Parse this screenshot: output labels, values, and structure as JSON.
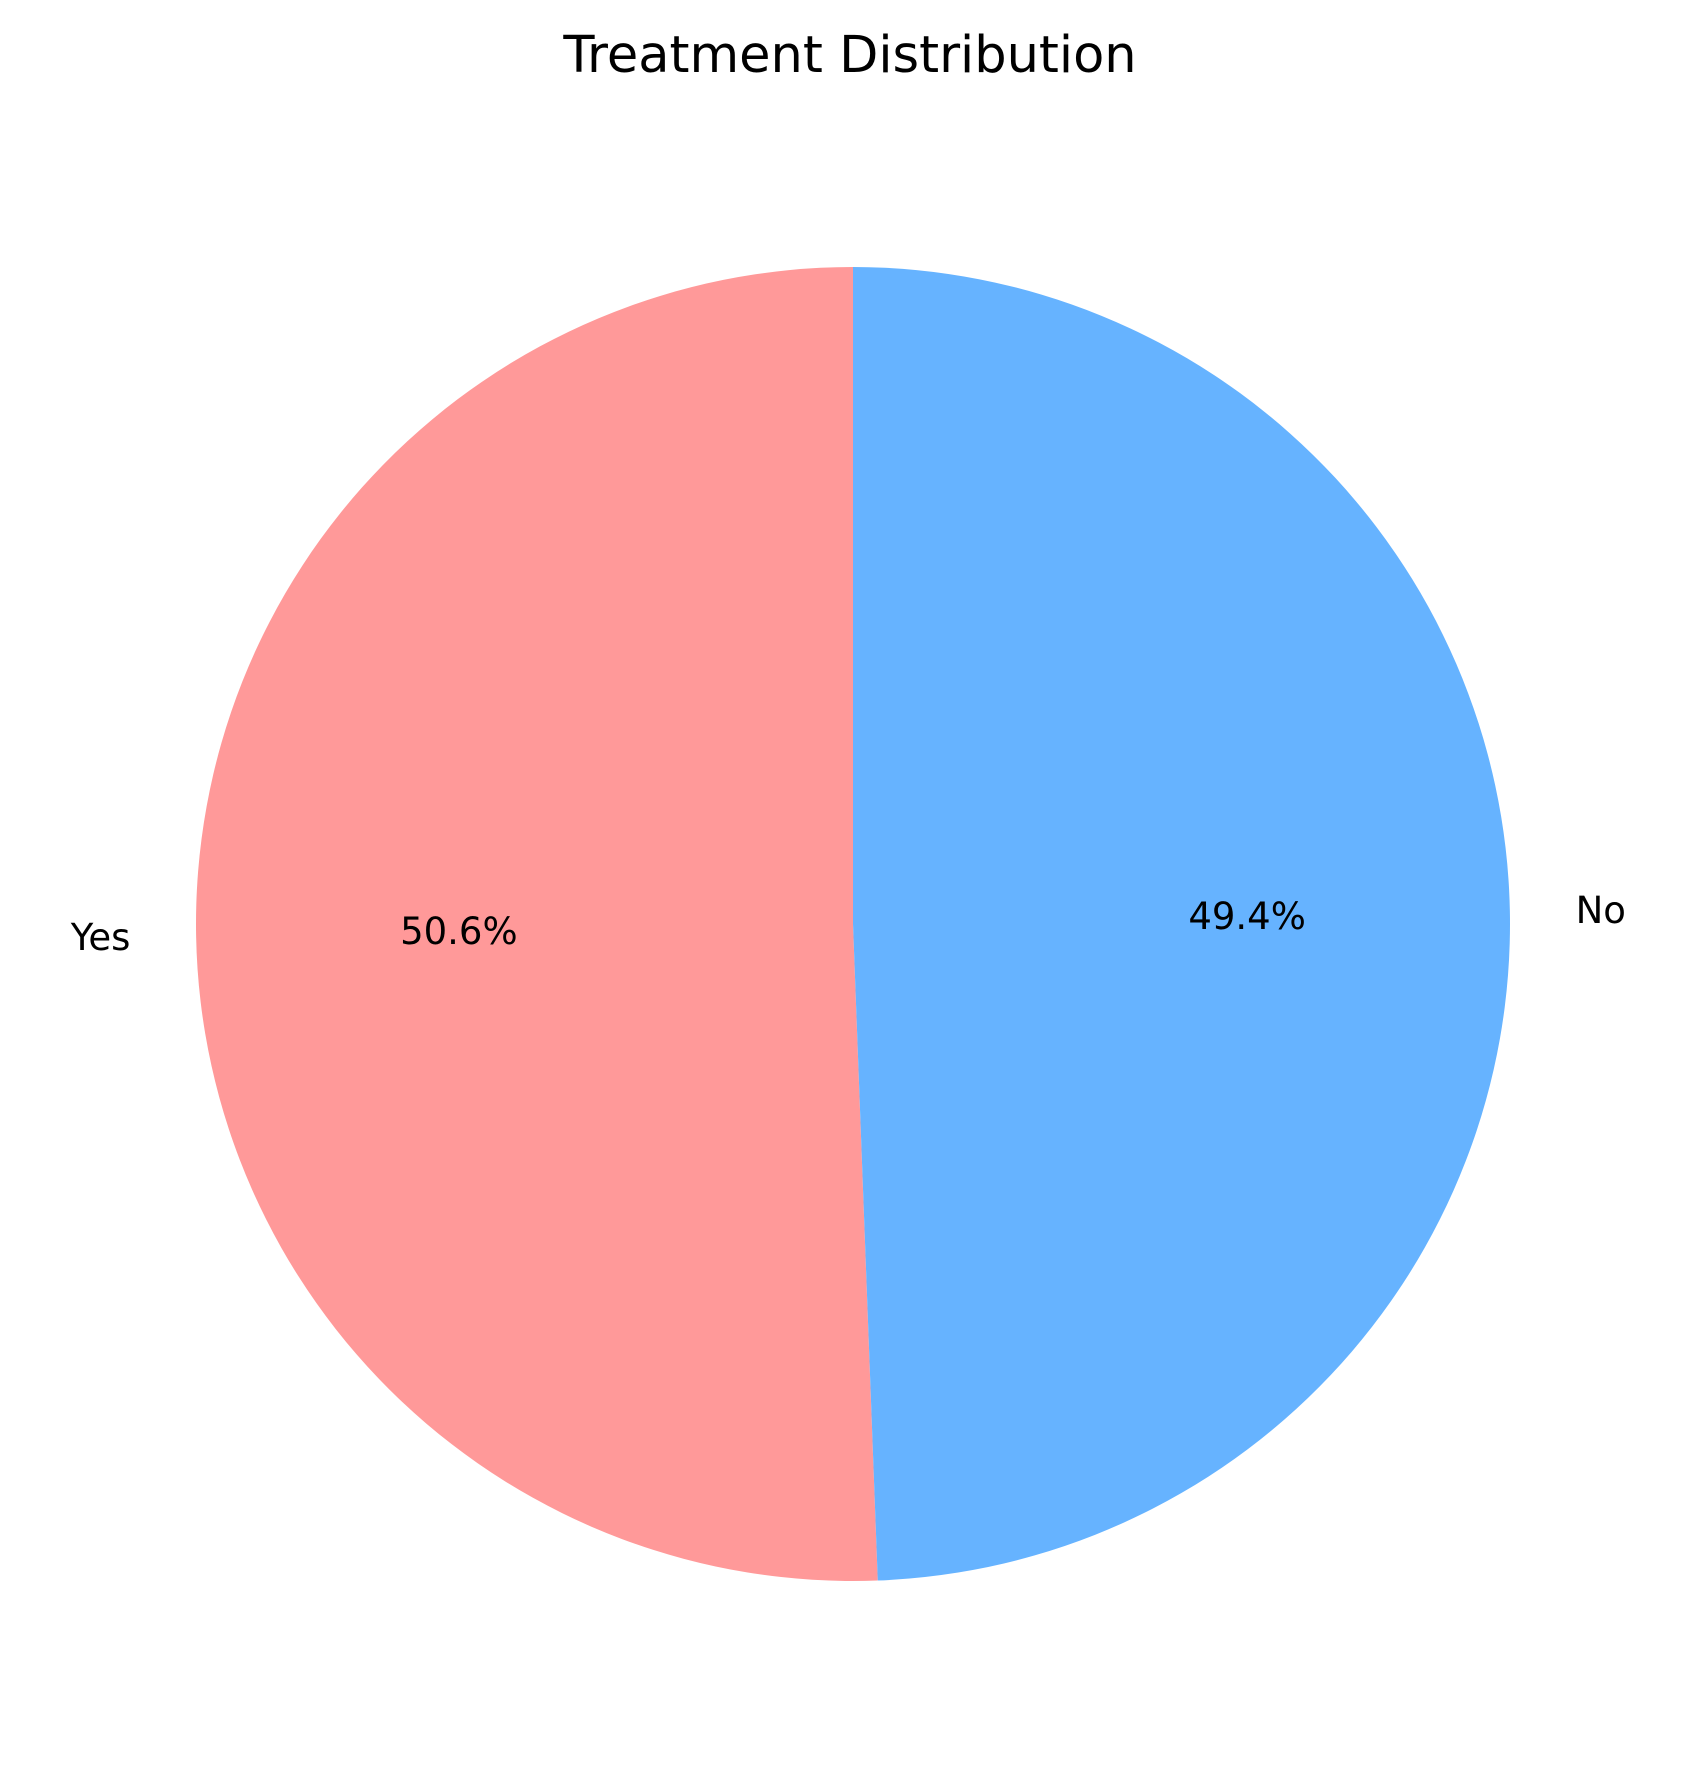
{
  "chart_data": {
    "type": "pie",
    "title": "Treatment Distribution",
    "categories": [
      "Yes",
      "No"
    ],
    "values": [
      50.6,
      49.4
    ],
    "percent_labels": [
      "50.6%",
      "49.4%"
    ],
    "colors": [
      "#ff9999",
      "#66b3ff"
    ],
    "start_angle_deg": 90,
    "direction": "counterclockwise",
    "legend": "none"
  }
}
